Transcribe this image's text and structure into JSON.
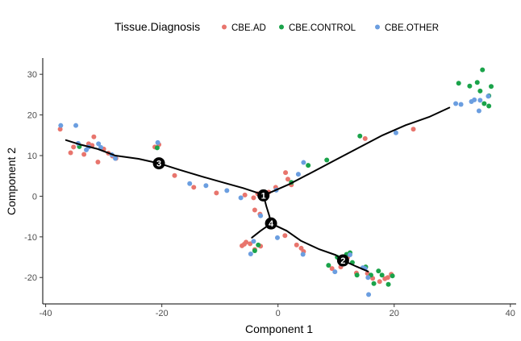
{
  "chart_data": {
    "type": "scatter",
    "title": "",
    "xlabel": "Component 1",
    "ylabel": "Component 2",
    "xlim": [
      -40.5,
      41
    ],
    "ylim": [
      -26.5,
      34
    ],
    "xticks": [
      -40,
      -20,
      0,
      20,
      40
    ],
    "yticks": [
      -20,
      -10,
      0,
      10,
      20,
      30
    ],
    "grid": false,
    "legend": {
      "title": "Tissue.Diagnosis",
      "placement": "top"
    },
    "colors": {
      "CBE.AD": "#e8756d",
      "CBE.CONTROL": "#1aa34a",
      "CBE.OTHER": "#6b9ee0",
      "trajectory": "#000000"
    },
    "series": [
      {
        "name": "CBE.AD",
        "points": [
          [
            -37.5,
            16.5
          ],
          [
            -35.7,
            10.7
          ],
          [
            -35.2,
            12.1
          ],
          [
            -33.4,
            10.3
          ],
          [
            -32.6,
            12.9
          ],
          [
            -31.7,
            14.6
          ],
          [
            -31.0,
            8.4
          ],
          [
            -30.0,
            11.6
          ],
          [
            -29.2,
            10.6
          ],
          [
            -28.5,
            9.9
          ],
          [
            -27.9,
            9.3
          ],
          [
            -21.2,
            12.1
          ],
          [
            -20.5,
            12.7
          ],
          [
            -17.8,
            5.1
          ],
          [
            -14.5,
            2.2
          ],
          [
            -10.6,
            0.8
          ],
          [
            -5.7,
            0.3
          ],
          [
            -4.2,
            -0.4
          ],
          [
            -3.5,
            0.6
          ],
          [
            -2.7,
            0.0
          ],
          [
            -1.6,
            1.0
          ],
          [
            -0.4,
            2.2
          ],
          [
            1.3,
            5.8
          ],
          [
            1.7,
            4.2
          ],
          [
            2.3,
            2.8
          ],
          [
            -4.0,
            -3.4
          ],
          [
            -3.1,
            -4.4
          ],
          [
            -6.2,
            -12.2
          ],
          [
            -5.8,
            -11.8
          ],
          [
            -5.5,
            -11.3
          ],
          [
            -4.8,
            -11.7
          ],
          [
            -4.0,
            -13.1
          ],
          [
            -3.0,
            -12.3
          ],
          [
            1.2,
            -9.7
          ],
          [
            3.2,
            -12.0
          ],
          [
            4.0,
            -12.8
          ],
          [
            4.4,
            -13.6
          ],
          [
            9.3,
            -17.8
          ],
          [
            10.8,
            -17.4
          ],
          [
            11.3,
            -15.8
          ],
          [
            12.0,
            -15.0
          ],
          [
            13.5,
            -18.9
          ],
          [
            15.4,
            -19.0
          ],
          [
            16.3,
            -20.2
          ],
          [
            17.5,
            -21.0
          ],
          [
            18.4,
            -20.3
          ],
          [
            18.9,
            -20.0
          ],
          [
            19.5,
            -19.2
          ],
          [
            15.0,
            14.2
          ],
          [
            23.3,
            16.5
          ],
          [
            -32.0,
            12.5
          ]
        ]
      },
      {
        "name": "CBE.CONTROL",
        "points": [
          [
            -34.2,
            12.2
          ],
          [
            -20.8,
            11.9
          ],
          [
            -4.0,
            -13.4
          ],
          [
            -3.4,
            -12.0
          ],
          [
            2.3,
            3.4
          ],
          [
            5.2,
            7.6
          ],
          [
            8.4,
            8.9
          ],
          [
            14.1,
            14.8
          ],
          [
            10.2,
            -15.0
          ],
          [
            11.8,
            -14.3
          ],
          [
            12.4,
            -13.9
          ],
          [
            12.8,
            -16.3
          ],
          [
            8.7,
            -17.0
          ],
          [
            13.6,
            -19.4
          ],
          [
            15.1,
            -17.4
          ],
          [
            16.0,
            -19.4
          ],
          [
            16.5,
            -21.5
          ],
          [
            17.3,
            -18.4
          ],
          [
            17.9,
            -19.4
          ],
          [
            19.0,
            -21.7
          ],
          [
            19.7,
            -19.6
          ],
          [
            31.1,
            27.8
          ],
          [
            33.0,
            27.1
          ],
          [
            34.3,
            28.0
          ],
          [
            34.8,
            25.9
          ],
          [
            35.2,
            31.1
          ],
          [
            36.3,
            24.7
          ],
          [
            36.7,
            27.0
          ],
          [
            36.3,
            22.2
          ],
          [
            35.5,
            22.8
          ]
        ]
      },
      {
        "name": "CBE.OTHER",
        "points": [
          [
            -37.4,
            17.4
          ],
          [
            -34.8,
            17.4
          ],
          [
            -34.4,
            13.0
          ],
          [
            -33.0,
            11.4
          ],
          [
            -32.6,
            12.1
          ],
          [
            -30.9,
            12.9
          ],
          [
            -30.5,
            12.0
          ],
          [
            -28.6,
            10.2
          ],
          [
            -28.0,
            9.3
          ],
          [
            -20.7,
            13.2
          ],
          [
            -15.2,
            3.1
          ],
          [
            -12.4,
            2.6
          ],
          [
            -8.8,
            1.4
          ],
          [
            -6.4,
            -0.4
          ],
          [
            -3.0,
            -4.8
          ],
          [
            -2.7,
            0.6
          ],
          [
            -0.3,
            1.5
          ],
          [
            3.5,
            5.4
          ],
          [
            4.4,
            8.3
          ],
          [
            -4.7,
            -14.2
          ],
          [
            -4.2,
            -11.1
          ],
          [
            -0.1,
            -10.2
          ],
          [
            4.3,
            -14.3
          ],
          [
            9.8,
            -18.6
          ],
          [
            11.0,
            -16.7
          ],
          [
            12.4,
            -14.4
          ],
          [
            14.6,
            -17.6
          ],
          [
            15.5,
            -20.0
          ],
          [
            15.6,
            -24.2
          ],
          [
            20.3,
            15.6
          ],
          [
            30.6,
            22.8
          ],
          [
            31.5,
            22.6
          ],
          [
            33.3,
            23.3
          ],
          [
            33.8,
            23.7
          ],
          [
            34.6,
            21.0
          ],
          [
            34.8,
            23.6
          ],
          [
            36.2,
            24.6
          ],
          [
            15.0,
            -17.8
          ]
        ]
      }
    ],
    "trajectory": [
      [
        [
          -36.5,
          13.8
        ],
        [
          -34.0,
          12.7
        ],
        [
          -31.0,
          11.6
        ],
        [
          -28.0,
          10.0
        ],
        [
          -24.0,
          9.2
        ],
        [
          -20.5,
          8.1
        ],
        [
          -17.0,
          6.5
        ],
        [
          -13.0,
          4.8
        ],
        [
          -9.0,
          3.2
        ],
        [
          -6.0,
          2.0
        ],
        [
          -3.0,
          0.6
        ],
        [
          -2.5,
          0.2
        ]
      ],
      [
        [
          -2.5,
          0.2
        ],
        [
          2.0,
          3.0
        ],
        [
          6.0,
          6.0
        ],
        [
          10.0,
          9.0
        ],
        [
          14.0,
          12.0
        ],
        [
          18.0,
          15.0
        ],
        [
          22.0,
          17.5
        ],
        [
          26.0,
          19.5
        ],
        [
          29.5,
          21.8
        ]
      ],
      [
        [
          -2.5,
          0.2
        ],
        [
          -2.0,
          -2.5
        ],
        [
          -1.5,
          -4.8
        ],
        [
          -1.2,
          -6.7
        ]
      ],
      [
        [
          -1.2,
          -6.7
        ],
        [
          -3.0,
          -8.5
        ],
        [
          -4.5,
          -10.2
        ]
      ],
      [
        [
          -1.2,
          -6.7
        ],
        [
          1.5,
          -8.5
        ],
        [
          4.0,
          -11.0
        ],
        [
          7.0,
          -13.0
        ],
        [
          10.0,
          -14.5
        ],
        [
          11.2,
          -15.8
        ],
        [
          13.5,
          -17.3
        ],
        [
          15.5,
          -18.5
        ]
      ]
    ],
    "nodes": [
      {
        "label": "3",
        "x": -20.5,
        "y": 8.1
      },
      {
        "label": "1",
        "x": -2.5,
        "y": 0.2
      },
      {
        "label": "4",
        "x": -1.2,
        "y": -6.7
      },
      {
        "label": "2",
        "x": 11.2,
        "y": -15.8
      }
    ]
  }
}
